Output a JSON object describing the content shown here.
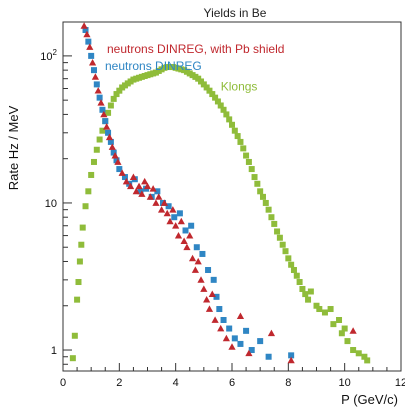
{
  "chart_data": {
    "type": "scatter",
    "title": "Yields in Be",
    "xlabel": "P (GeV/c)",
    "ylabel": "Rate  Hz / MeV",
    "xlim": [
      0,
      12
    ],
    "ylim": [
      0.72,
      170
    ],
    "yscale": "log",
    "x_ticks": [
      "0",
      "2",
      "4",
      "6",
      "8",
      "10",
      "12"
    ],
    "y_ticks": [
      {
        "value": 1,
        "label": "1"
      },
      {
        "value": 10,
        "label": "10"
      },
      {
        "value": 100,
        "label": "10^2"
      }
    ],
    "grid": false,
    "legend_position": "top-left",
    "series": [
      {
        "name": "neutrons DINREG, with Pb shield",
        "color": "#c0282e",
        "marker": "triangle",
        "points": [
          [
            0.75,
            160
          ],
          [
            0.85,
            140
          ],
          [
            0.95,
            115
          ],
          [
            1.05,
            90
          ],
          [
            1.15,
            72
          ],
          [
            1.25,
            58
          ],
          [
            1.35,
            48
          ],
          [
            1.45,
            40
          ],
          [
            1.55,
            33
          ],
          [
            1.65,
            28
          ],
          [
            1.75,
            24
          ],
          [
            1.85,
            21
          ],
          [
            1.95,
            19
          ],
          [
            2.1,
            16
          ],
          [
            2.25,
            14
          ],
          [
            2.4,
            13
          ],
          [
            2.5,
            15
          ],
          [
            2.6,
            12
          ],
          [
            2.7,
            13
          ],
          [
            2.8,
            11.5
          ],
          [
            2.9,
            14
          ],
          [
            3.0,
            13
          ],
          [
            3.1,
            11
          ],
          [
            3.2,
            12.5
          ],
          [
            3.3,
            10
          ],
          [
            3.4,
            11
          ],
          [
            3.5,
            9
          ],
          [
            3.6,
            10
          ],
          [
            3.7,
            8.5
          ],
          [
            3.8,
            7.5
          ],
          [
            3.9,
            9
          ],
          [
            4.0,
            7
          ],
          [
            4.1,
            6
          ],
          [
            4.2,
            7.5
          ],
          [
            4.3,
            5.5
          ],
          [
            4.4,
            5
          ],
          [
            4.5,
            6
          ],
          [
            4.6,
            4.2
          ],
          [
            4.7,
            3.5
          ],
          [
            4.8,
            4
          ],
          [
            4.9,
            3
          ],
          [
            5.0,
            2.6
          ],
          [
            5.1,
            2.2
          ],
          [
            5.2,
            1.9
          ],
          [
            5.3,
            2.4
          ],
          [
            5.4,
            1.6
          ],
          [
            5.6,
            1.4
          ],
          [
            5.8,
            1.2
          ],
          [
            6.0,
            1.05
          ],
          [
            6.3,
            1.7
          ],
          [
            6.6,
            0.95
          ],
          [
            7.4,
            1.3
          ],
          [
            8.1,
            0.85
          ],
          [
            10.3,
            1.35
          ]
        ]
      },
      {
        "name": "neutrons DINREG",
        "color": "#2f86c4",
        "marker": "square",
        "points": [
          [
            0.8,
            150
          ],
          [
            0.9,
            125
          ],
          [
            1.0,
            100
          ],
          [
            1.1,
            80
          ],
          [
            1.2,
            64
          ],
          [
            1.3,
            52
          ],
          [
            1.4,
            43
          ],
          [
            1.5,
            36
          ],
          [
            1.6,
            30
          ],
          [
            1.7,
            26
          ],
          [
            1.8,
            22
          ],
          [
            1.9,
            19.5
          ],
          [
            2.0,
            17
          ],
          [
            2.2,
            15
          ],
          [
            2.35,
            13.5
          ],
          [
            2.55,
            14.5
          ],
          [
            2.75,
            12
          ],
          [
            2.95,
            12.5
          ],
          [
            3.15,
            11
          ],
          [
            3.35,
            12
          ],
          [
            3.55,
            10
          ],
          [
            3.75,
            9.5
          ],
          [
            3.95,
            8
          ],
          [
            4.15,
            8.5
          ],
          [
            4.35,
            6.5
          ],
          [
            4.55,
            7
          ],
          [
            4.75,
            5
          ],
          [
            4.95,
            4.5
          ],
          [
            5.15,
            3.5
          ],
          [
            5.35,
            3
          ],
          [
            5.45,
            2.3
          ],
          [
            5.55,
            1.9
          ],
          [
            5.7,
            1.6
          ],
          [
            5.9,
            1.4
          ],
          [
            6.1,
            1.2
          ],
          [
            6.3,
            1.1
          ],
          [
            6.5,
            1.35
          ],
          [
            6.7,
            1.0
          ],
          [
            7.0,
            1.15
          ],
          [
            7.3,
            0.9
          ],
          [
            8.1,
            0.92
          ]
        ]
      },
      {
        "name": "Klongs",
        "color": "#8fbc3a",
        "marker": "square",
        "points": [
          [
            0.35,
            0.88
          ],
          [
            0.42,
            1.25
          ],
          [
            0.5,
            2.2
          ],
          [
            0.55,
            2.9
          ],
          [
            0.6,
            4.0
          ],
          [
            0.65,
            5.2
          ],
          [
            0.7,
            6.8
          ],
          [
            0.8,
            9.5
          ],
          [
            0.9,
            12
          ],
          [
            1.0,
            15.5
          ],
          [
            1.1,
            19
          ],
          [
            1.2,
            23
          ],
          [
            1.3,
            27
          ],
          [
            1.4,
            31
          ],
          [
            1.5,
            36
          ],
          [
            1.6,
            41
          ],
          [
            1.7,
            46
          ],
          [
            1.8,
            51
          ],
          [
            1.9,
            55
          ],
          [
            2.0,
            58
          ],
          [
            2.1,
            61
          ],
          [
            2.2,
            63
          ],
          [
            2.3,
            65
          ],
          [
            2.4,
            67
          ],
          [
            2.5,
            69
          ],
          [
            2.6,
            70
          ],
          [
            2.7,
            71
          ],
          [
            2.8,
            72
          ],
          [
            2.9,
            73
          ],
          [
            3.0,
            74
          ],
          [
            3.1,
            75
          ],
          [
            3.2,
            76
          ],
          [
            3.3,
            77
          ],
          [
            3.4,
            79
          ],
          [
            3.5,
            81
          ],
          [
            3.6,
            83
          ],
          [
            3.7,
            84
          ],
          [
            3.8,
            84
          ],
          [
            3.9,
            84
          ],
          [
            4.0,
            83
          ],
          [
            4.1,
            82
          ],
          [
            4.2,
            81
          ],
          [
            4.3,
            80
          ],
          [
            4.4,
            78
          ],
          [
            4.5,
            76
          ],
          [
            4.6,
            74
          ],
          [
            4.7,
            72
          ],
          [
            4.8,
            70
          ],
          [
            4.9,
            67
          ],
          [
            5.0,
            64
          ],
          [
            5.1,
            61
          ],
          [
            5.2,
            58
          ],
          [
            5.3,
            55
          ],
          [
            5.4,
            52
          ],
          [
            5.5,
            49
          ],
          [
            5.6,
            46
          ],
          [
            5.7,
            43
          ],
          [
            5.8,
            40
          ],
          [
            5.9,
            37
          ],
          [
            6.0,
            34
          ],
          [
            6.1,
            31
          ],
          [
            6.2,
            28.5
          ],
          [
            6.3,
            26
          ],
          [
            6.4,
            23.5
          ],
          [
            6.5,
            21
          ],
          [
            6.6,
            19
          ],
          [
            6.7,
            17
          ],
          [
            6.8,
            15
          ],
          [
            6.9,
            13.5
          ],
          [
            7.0,
            12
          ],
          [
            7.1,
            11
          ],
          [
            7.2,
            10
          ],
          [
            7.3,
            9
          ],
          [
            7.4,
            8
          ],
          [
            7.5,
            7.2
          ],
          [
            7.6,
            6.4
          ],
          [
            7.7,
            5.8
          ],
          [
            7.8,
            5.2
          ],
          [
            7.9,
            4.7
          ],
          [
            8.0,
            4.2
          ],
          [
            8.1,
            3.8
          ],
          [
            8.2,
            3.5
          ],
          [
            8.3,
            3.2
          ],
          [
            8.4,
            2.9
          ],
          [
            8.5,
            2.6
          ],
          [
            8.6,
            2.4
          ],
          [
            8.7,
            2.2
          ],
          [
            8.8,
            2.5
          ],
          [
            9.0,
            2.0
          ],
          [
            9.1,
            1.9
          ],
          [
            9.3,
            1.8
          ],
          [
            9.5,
            1.9
          ],
          [
            9.6,
            1.5
          ],
          [
            9.8,
            1.6
          ],
          [
            9.9,
            1.3
          ],
          [
            10.0,
            1.4
          ],
          [
            10.1,
            1.15
          ],
          [
            10.3,
            1.0
          ],
          [
            10.5,
            0.95
          ],
          [
            10.7,
            0.9
          ],
          [
            10.8,
            0.85
          ]
        ]
      }
    ],
    "annotations": [
      {
        "text": "Klongs",
        "x": 5.6,
        "y": 62,
        "color": "#8fbc3a"
      }
    ]
  }
}
